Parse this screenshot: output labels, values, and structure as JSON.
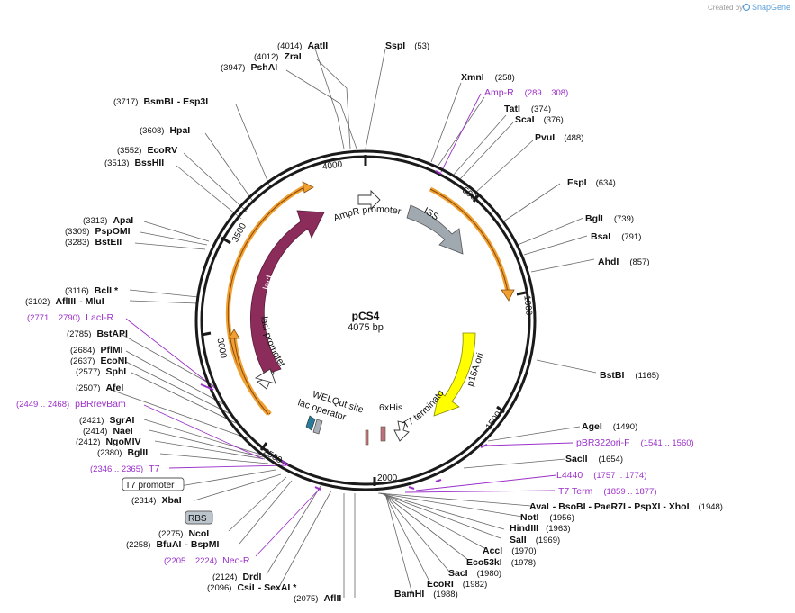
{
  "watermark": {
    "prefix": "Created by",
    "brand": "SnapGene"
  },
  "plasmid": {
    "name": "pCS4",
    "length_label": "4075 bp"
  },
  "ticks": [
    "4000",
    "500",
    "1000",
    "1500",
    "2000",
    "2500",
    "3000",
    "3500"
  ],
  "features": {
    "ampr_promoter": "AmpR promoter",
    "iss": "ISS",
    "laci": "lacI",
    "laci_promoter": "lacI promoter",
    "p15a_ori": "p15A ori",
    "t7_terminator": "T7 terminator",
    "his6": "6xHis",
    "welqut": "WELQut site",
    "lac_operator": "lac operator"
  },
  "enzymes": [
    {
      "pos": "(4014)",
      "name": "AatII"
    },
    {
      "name": "SspI",
      "pos": "(53)"
    },
    {
      "pos": "(4012)",
      "name": "ZraI"
    },
    {
      "pos": "(3947)",
      "name": "PshAI"
    },
    {
      "name": "XmnI",
      "pos": "(258)"
    },
    {
      "name": "TatI",
      "pos": "(374)"
    },
    {
      "name": "ScaI",
      "pos": "(376)"
    },
    {
      "pos": "(3717)",
      "name": "BsmBI",
      "extra": "-  Esp3I"
    },
    {
      "pos": "(3608)",
      "name": "HpaI"
    },
    {
      "name": "PvuI",
      "pos": "(488)"
    },
    {
      "pos": "(3552)",
      "name": "EcoRV"
    },
    {
      "pos": "(3513)",
      "name": "BssHII"
    },
    {
      "name": "FspI",
      "pos": "(634)"
    },
    {
      "name": "BglI",
      "pos": "(739)"
    },
    {
      "pos": "(3313)",
      "name": "ApaI"
    },
    {
      "pos": "(3309)",
      "name": "PspOMI"
    },
    {
      "name": "BsaI",
      "pos": "(791)"
    },
    {
      "pos": "(3283)",
      "name": "BstEII"
    },
    {
      "name": "AhdI",
      "pos": "(857)"
    },
    {
      "pos": "(3116)",
      "name": "BclI *"
    },
    {
      "pos": "(3102)",
      "name": "AflIII",
      "extra": "-  MluI"
    },
    {
      "pos": "(2785)",
      "name": "BstAPI"
    },
    {
      "pos": "(2684)",
      "name": "PflMI"
    },
    {
      "pos": "(2637)",
      "name": "EcoNI"
    },
    {
      "pos": "(2577)",
      "name": "SphI"
    },
    {
      "name": "BstBI",
      "pos": "(1165)"
    },
    {
      "pos": "(2507)",
      "name": "AfeI"
    },
    {
      "name": "AgeI",
      "pos": "(1490)"
    },
    {
      "pos": "(2421)",
      "name": "SgrAI"
    },
    {
      "pos": "(2414)",
      "name": "NaeI"
    },
    {
      "pos": "(2412)",
      "name": "NgoMIV"
    },
    {
      "pos": "(2380)",
      "name": "BglII"
    },
    {
      "name": "SacII",
      "pos": "(1654)"
    },
    {
      "pos": "(2314)",
      "name": "XbaI"
    },
    {
      "name": "AvaI",
      "extra": "-  BsoBI   -  PaeR7I   -  PspXI   -  XhoI",
      "pos": "(1948)"
    },
    {
      "name": "NotI",
      "pos": "(1956)"
    },
    {
      "name": "HindIII",
      "pos": "(1963)"
    },
    {
      "pos": "(2275)",
      "name": "NcoI"
    },
    {
      "name": "SalI",
      "pos": "(1969)"
    },
    {
      "pos": "(2258)",
      "name": "BfuAI",
      "extra": "-  BspMI"
    },
    {
      "name": "AccI",
      "pos": "(1970)"
    },
    {
      "name": "Eco53kI",
      "pos": "(1978)"
    },
    {
      "name": "SacI",
      "pos": "(1980)"
    },
    {
      "pos": "(2124)",
      "name": "DrdI"
    },
    {
      "name": "EcoRI",
      "pos": "(1982)"
    },
    {
      "pos": "(2096)",
      "name": "CsiI",
      "extra": "-  SexAI *"
    },
    {
      "name": "BamHI",
      "pos": "(1988)"
    },
    {
      "pos": "(2075)",
      "name": "AflII"
    }
  ],
  "primers": [
    {
      "name": "Amp-R",
      "pos": "(289 .. 308)"
    },
    {
      "pos": "(2771 .. 2790)",
      "name": "LacI-R"
    },
    {
      "pos": "(2449 .. 2468)",
      "name": "pBRrevBam"
    },
    {
      "name": "pBR322ori-F",
      "pos": "(1541 .. 1560)"
    },
    {
      "pos": "(2346 .. 2365)",
      "name": "T7"
    },
    {
      "name": "L4440",
      "pos": "(1757 .. 1774)"
    },
    {
      "name": "T7 Term",
      "pos": "(1859 .. 1877)"
    },
    {
      "pos": "(2205 .. 2224)",
      "name": "Neo-R"
    }
  ],
  "boxes": {
    "t7_promoter": "T7 promoter",
    "rbs": "RBS"
  }
}
